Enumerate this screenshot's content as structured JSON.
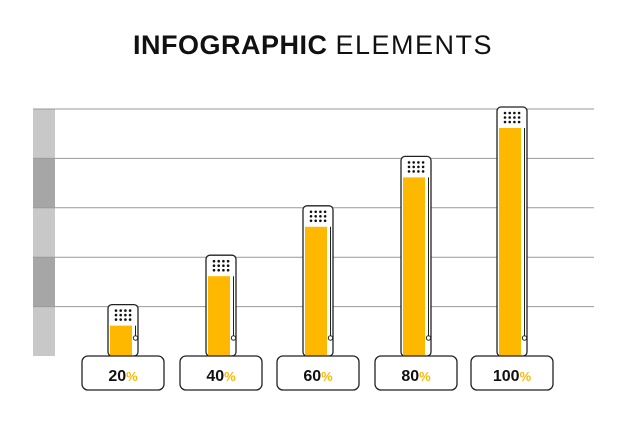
{
  "title": {
    "bold": "INFOGRAPHIC",
    "light": "ELEMENTS"
  },
  "colors": {
    "accent": "#FFB800",
    "outline": "#222222",
    "grid": "#9a9a9a",
    "band_light": "#c8c8c8",
    "band_dark": "#a6a6a6",
    "dots": "#111111"
  },
  "chart_data": {
    "type": "bar",
    "categories": [
      "20",
      "40",
      "60",
      "80",
      "100"
    ],
    "values": [
      20,
      40,
      60,
      80,
      100
    ],
    "units": "%",
    "ylim": [
      0,
      100
    ],
    "grid": true,
    "title": "INFOGRAPHIC ELEMENTS",
    "xlabel": "",
    "ylabel": ""
  }
}
